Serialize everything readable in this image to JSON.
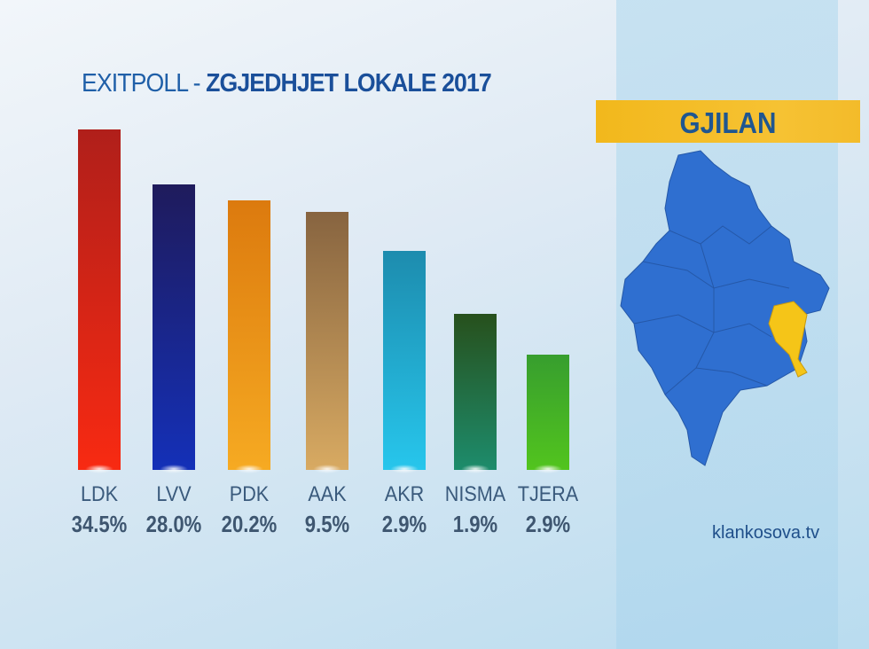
{
  "title": {
    "light": "EXITPOLL - ",
    "bold": "ZGJEDHJET LOKALE 2017"
  },
  "municipality": "GJILAN",
  "source": "klankosova.tv",
  "map": {
    "region_color": "#2f6fd0",
    "highlight_color": "#f5c518",
    "highlighted": "GJILAN"
  },
  "chart_data": {
    "type": "bar",
    "title": "EXITPOLL - ZGJEDHJET LOKALE 2017",
    "categories": [
      "LDK",
      "LVV",
      "PDK",
      "AAK",
      "AKR",
      "NISMA",
      "TJERA"
    ],
    "values": [
      34.5,
      28.0,
      20.2,
      9.5,
      2.9,
      1.9,
      2.9
    ],
    "value_labels": [
      "34.5%",
      "28.0%",
      "20.2%",
      "9.5%",
      "2.9%",
      "1.9%",
      "2.9%"
    ],
    "colors": [
      [
        "#b01f1a",
        "#f82a12"
      ],
      [
        "#1f1b5c",
        "#1430b8"
      ],
      [
        "#dc7a0e",
        "#f6aa22"
      ],
      [
        "#876440",
        "#d8aa62"
      ],
      [
        "#1d8cae",
        "#27c6ec"
      ],
      [
        "#27501c",
        "#1d8c6c"
      ],
      [
        "#379e2e",
        "#52c41e"
      ]
    ],
    "grid": false,
    "legend": "none"
  }
}
